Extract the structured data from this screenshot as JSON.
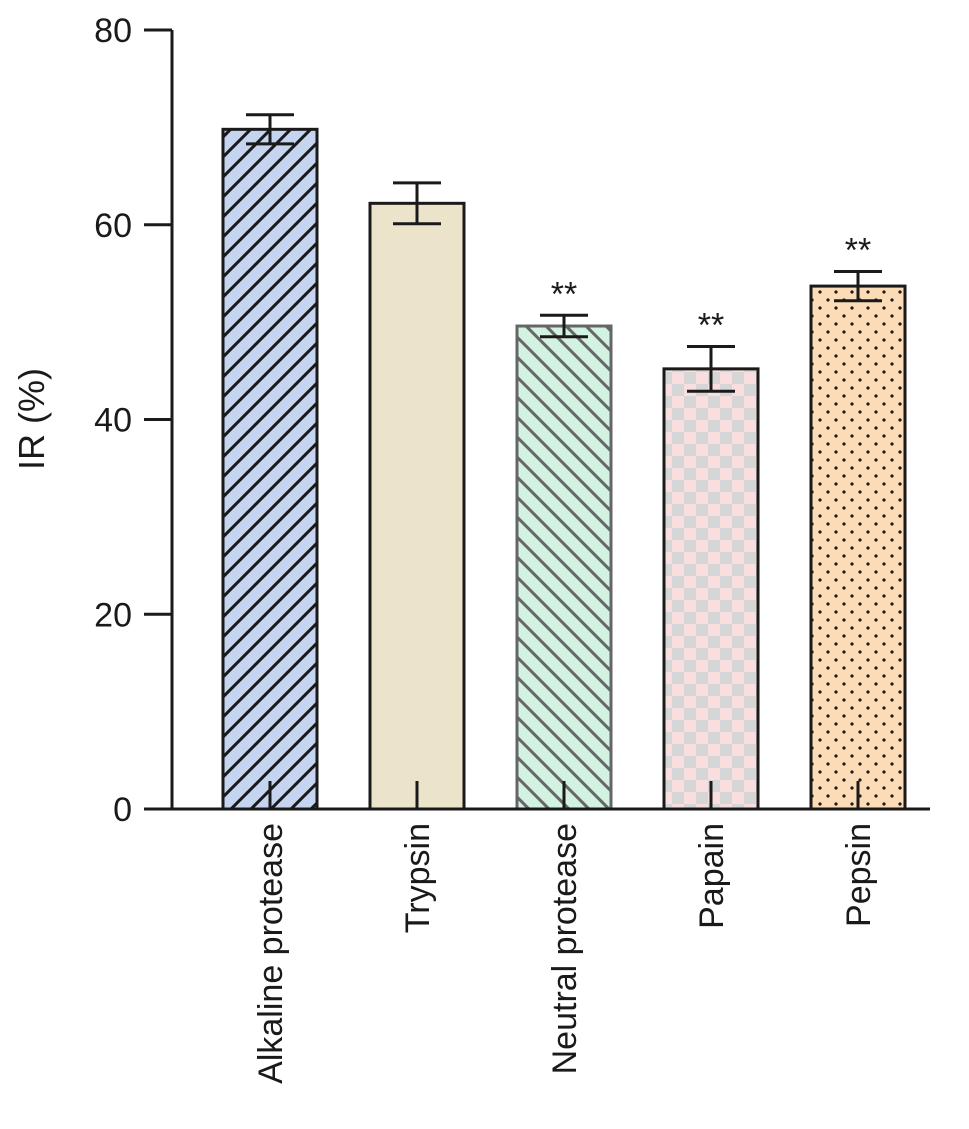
{
  "chart_data": {
    "type": "bar",
    "title": "",
    "xlabel": "",
    "ylabel": "IR (%)",
    "ylim": [
      0,
      80
    ],
    "yticks": [
      0,
      20,
      40,
      60,
      80
    ],
    "tick_labels": [
      "0",
      "20",
      "40",
      "60",
      "80"
    ],
    "grid": false,
    "legend": "none",
    "categories": [
      "Alkaline protease",
      "Trypsin",
      "Neutral protease",
      "Papain",
      "Pepsin"
    ],
    "values": [
      69.8,
      62.2,
      49.6,
      45.2,
      53.7
    ],
    "errors": [
      1.5,
      2.1,
      1.1,
      2.3,
      1.5
    ],
    "significance": [
      "",
      "",
      "**",
      "**",
      "**"
    ],
    "fill_colors": [
      "#c5d5f0",
      "#ece4ca",
      "#d2f2e2",
      "#f8dede",
      "#fbdcb6"
    ],
    "patterns": [
      "diagonal-up",
      "solid",
      "diagonal-down",
      "checker",
      "dots"
    ]
  }
}
